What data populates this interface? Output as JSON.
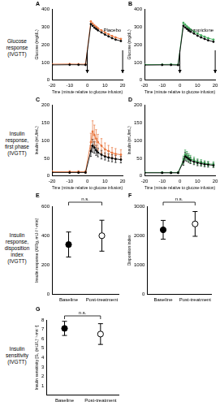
{
  "row_labels": [
    [
      "Glucose",
      "response",
      "(IVGTT)"
    ],
    [
      "Insulin",
      "response,",
      "first phase",
      "(IVGTT)"
    ],
    [
      "Insulin",
      "response,",
      "disposition",
      "index",
      "(IVGTT)"
    ],
    [
      "Insulin",
      "sensitivity",
      "(IVGTT)"
    ]
  ],
  "chart_data": [
    {
      "type": "line",
      "panel": "A",
      "title": "Placebo",
      "grid": false,
      "x_label": "Time (minute relative to glucose infusion)",
      "y_label": "Glucose (mg/dL)",
      "x": [
        -20,
        -10,
        -5,
        -1,
        2,
        3,
        4,
        5,
        6,
        8,
        10,
        12,
        14,
        16,
        19
      ],
      "xlim": [
        -20,
        20
      ],
      "xticks": [
        -20,
        -10,
        0,
        10,
        20
      ],
      "ylim": [
        0,
        400
      ],
      "yticks": [
        0,
        100,
        200,
        300,
        400
      ],
      "arrows": [
        0,
        20
      ],
      "series": [
        {
          "color": "#000000",
          "values": [
            86,
            87,
            87,
            86,
            315,
            305,
            295,
            288,
            280,
            268,
            256,
            246,
            236,
            228,
            220
          ]
        },
        {
          "color": "#e8743b",
          "values": [
            90,
            91,
            90,
            90,
            330,
            318,
            308,
            300,
            292,
            280,
            268,
            258,
            248,
            240,
            232
          ]
        }
      ]
    },
    {
      "type": "line",
      "panel": "B",
      "title": "Eszopiclone",
      "grid": false,
      "x_label": "Time (minute relative to glucose infusion)",
      "y_label": "Glucose (mg/dL)",
      "x": [
        -20,
        -10,
        -5,
        -1,
        2,
        3,
        4,
        5,
        6,
        8,
        10,
        12,
        14,
        16,
        19
      ],
      "xlim": [
        -20,
        20
      ],
      "xticks": [
        -20,
        -10,
        0,
        10,
        20
      ],
      "ylim": [
        0,
        400
      ],
      "yticks": [
        0,
        100,
        200,
        300,
        400
      ],
      "arrows": [
        0,
        20
      ],
      "series": [
        {
          "color": "#000000",
          "values": [
            85,
            86,
            86,
            85,
            305,
            296,
            288,
            280,
            272,
            262,
            250,
            240,
            232,
            224,
            216
          ]
        },
        {
          "color": "#3aa655",
          "values": [
            88,
            88,
            89,
            88,
            322,
            312,
            302,
            294,
            285,
            274,
            262,
            252,
            244,
            236,
            228
          ]
        }
      ]
    },
    {
      "type": "line",
      "panel": "C",
      "grid": false,
      "x_label": "Time (minute relative to glucose infusion)",
      "y_label": "Insulin (mU/mL)",
      "x": [
        -20,
        -10,
        -5,
        -1,
        2,
        3,
        4,
        5,
        6,
        8,
        10,
        12,
        14,
        16,
        19
      ],
      "xlim": [
        -20,
        20
      ],
      "xticks": [
        -20,
        -10,
        0,
        10,
        20
      ],
      "ylim": [
        0,
        200
      ],
      "yticks": [
        0,
        50,
        100,
        150,
        200
      ],
      "series": [
        {
          "color": "#000000",
          "values": [
            10,
            10,
            10,
            10,
            70,
            85,
            80,
            72,
            66,
            60,
            55,
            52,
            50,
            48,
            46
          ],
          "errors": [
            2,
            2,
            2,
            2,
            15,
            18,
            16,
            14,
            12,
            12,
            10,
            10,
            10,
            10,
            9
          ]
        },
        {
          "color": "#e8743b",
          "values": [
            12,
            12,
            12,
            12,
            95,
            125,
            115,
            105,
            95,
            85,
            75,
            70,
            65,
            62,
            60
          ],
          "errors": [
            3,
            3,
            3,
            3,
            25,
            30,
            28,
            25,
            22,
            20,
            18,
            16,
            15,
            15,
            14
          ]
        }
      ]
    },
    {
      "type": "line",
      "panel": "D",
      "grid": false,
      "x_label": "Time (minute relative to glucose infusion)",
      "y_label": "Insulin (mU/mL)",
      "x": [
        -20,
        -10,
        -5,
        -1,
        2,
        3,
        4,
        5,
        6,
        8,
        10,
        12,
        14,
        16,
        19
      ],
      "xlim": [
        -20,
        20
      ],
      "xticks": [
        -20,
        -10,
        0,
        10,
        20
      ],
      "ylim": [
        0,
        200
      ],
      "yticks": [
        0,
        50,
        100,
        150,
        200
      ],
      "series": [
        {
          "color": "#000000",
          "values": [
            9,
            9,
            9,
            9,
            40,
            55,
            52,
            48,
            44,
            40,
            37,
            35,
            33,
            32,
            30
          ],
          "errors": [
            2,
            2,
            2,
            2,
            10,
            12,
            11,
            10,
            9,
            8,
            8,
            7,
            7,
            7,
            6
          ]
        },
        {
          "color": "#3aa655",
          "values": [
            10,
            10,
            10,
            10,
            45,
            60,
            57,
            52,
            48,
            44,
            40,
            38,
            36,
            34,
            33
          ],
          "errors": [
            2,
            2,
            2,
            2,
            11,
            13,
            12,
            11,
            10,
            9,
            8,
            8,
            7,
            7,
            7
          ]
        }
      ]
    },
    {
      "type": "scatter",
      "panel": "E",
      "grid": false,
      "annotation": "n.s.",
      "y_label": "Insulin response (AIRg, mU·l⁻¹·min)",
      "categories": [
        "Baseline",
        "Post-treatment"
      ],
      "ylim": [
        0,
        600
      ],
      "yticks": [
        0,
        200,
        400,
        600
      ],
      "series": [
        {
          "color": "#000000",
          "marker": "circle",
          "values": [
            340,
            null
          ],
          "errors": [
            85,
            null
          ]
        },
        {
          "color": "#000000",
          "marker": "circle_open",
          "values": [
            null,
            400
          ],
          "errors": [
            null,
            105
          ]
        }
      ]
    },
    {
      "type": "scatter",
      "panel": "F",
      "grid": false,
      "annotation": "n.s.",
      "y_label": "Disposition index",
      "categories": [
        "Baseline",
        "Post-treatment"
      ],
      "ylim": [
        0,
        3000
      ],
      "yticks": [
        0,
        1000,
        2000,
        3000
      ],
      "series": [
        {
          "color": "#000000",
          "marker": "circle",
          "values": [
            2200,
            null
          ],
          "errors": [
            320,
            null
          ]
        },
        {
          "color": "#000000",
          "marker": "circle_open",
          "values": [
            null,
            2400
          ],
          "errors": [
            null,
            420
          ]
        }
      ]
    },
    {
      "type": "scatter",
      "panel": "G",
      "grid": false,
      "annotation": "n.s.",
      "y_label": "Insulin sensitivity [Sᵢ, (mU/L)⁻¹·mn⁻¹]",
      "categories": [
        "Baseline",
        "Post-treatment"
      ],
      "ylim": [
        0,
        8
      ],
      "yticks": [
        1,
        2,
        3,
        4,
        5,
        6,
        7,
        8
      ],
      "series": [
        {
          "color": "#000000",
          "marker": "circle",
          "values": [
            7.1,
            null
          ],
          "errors": [
            0.75,
            null
          ]
        },
        {
          "color": "#000000",
          "marker": "circle_open",
          "values": [
            null,
            6.5
          ],
          "errors": [
            null,
            1.1
          ]
        }
      ]
    }
  ]
}
